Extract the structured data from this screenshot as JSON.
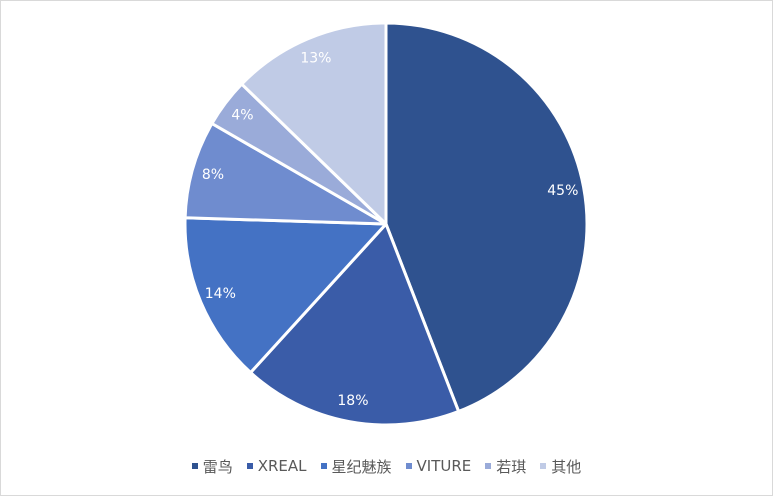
{
  "chart_data": {
    "type": "pie",
    "categories": [
      "雷鸟",
      "XREAL",
      "星纪魅族",
      "VITURE",
      "若琪",
      "其他"
    ],
    "values": [
      45,
      18,
      14,
      8,
      4,
      13
    ],
    "labels": [
      "45%",
      "18%",
      "14%",
      "8%",
      "4%",
      "13%"
    ],
    "colors": [
      "#2f528f",
      "#3a5ca8",
      "#4472c4",
      "#6f8ccf",
      "#9aabd9",
      "#c0cbe6"
    ],
    "label_colors": [
      "#ffffff",
      "#ffffff",
      "#ffffff",
      "#ffffff",
      "#ffffff",
      "#ffffff"
    ],
    "legend_position": "bottom",
    "title": ""
  }
}
